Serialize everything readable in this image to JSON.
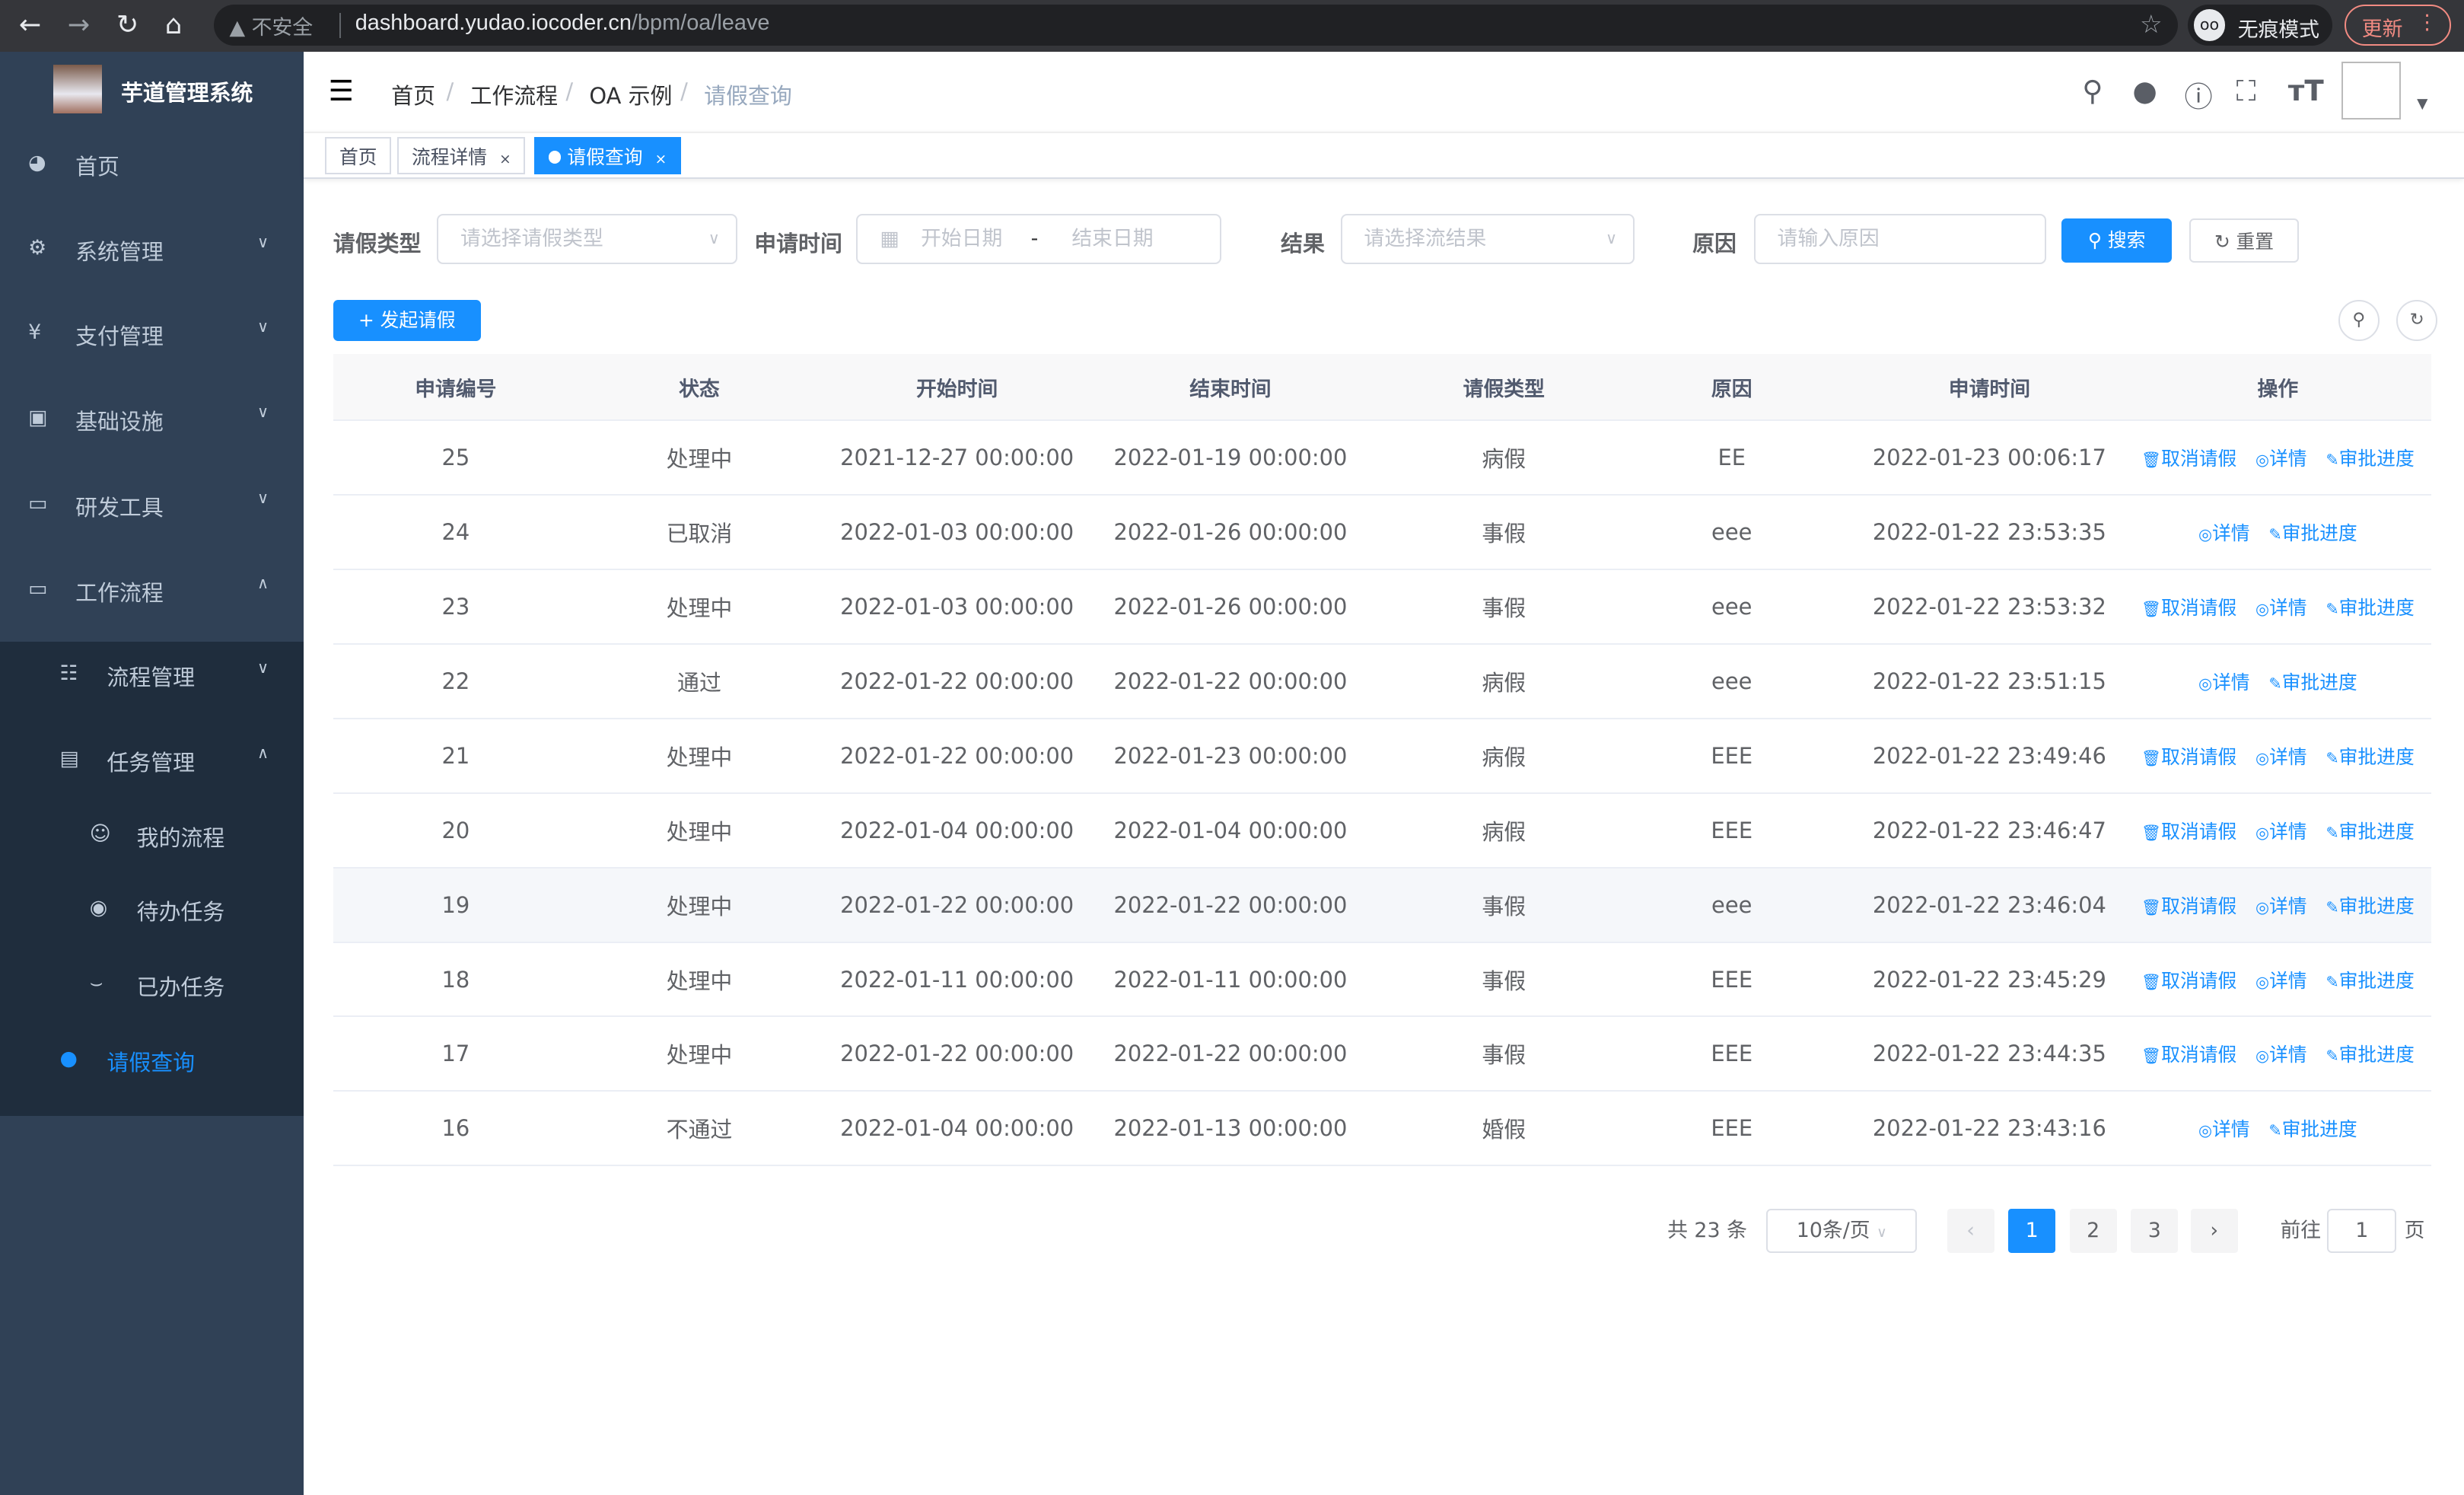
{
  "browser": {
    "security": "不安全",
    "url_host": "dashboard.yudao.iocoder.cn",
    "url_path": "/bpm/oa/leave",
    "incognito": "无痕模式",
    "update": "更新"
  },
  "sidebar": {
    "title": "芋道管理系统",
    "items": [
      {
        "label": "首页",
        "icon": "dashboard-icon"
      },
      {
        "label": "系统管理",
        "icon": "gear-icon"
      },
      {
        "label": "支付管理",
        "icon": "yen-icon"
      },
      {
        "label": "基础设施",
        "icon": "monitor-icon"
      },
      {
        "label": "研发工具",
        "icon": "toolbox-icon"
      },
      {
        "label": "工作流程",
        "icon": "toolbox-icon"
      },
      {
        "label": "流程管理",
        "icon": "tree-icon"
      },
      {
        "label": "任务管理",
        "icon": "task-icon"
      },
      {
        "label": "我的流程",
        "icon": "chat-icon"
      },
      {
        "label": "待办任务",
        "icon": "eye-icon"
      },
      {
        "label": "已办任务",
        "icon": "eye-closed-icon"
      },
      {
        "label": "请假查询",
        "icon": "user-icon"
      }
    ],
    "active_color": "#1890ff"
  },
  "breadcrumb": [
    "首页",
    "工作流程",
    "OA 示例",
    "请假查询"
  ],
  "tags": [
    {
      "label": "首页"
    },
    {
      "label": "流程详情",
      "close": "×"
    },
    {
      "label": "请假查询",
      "close": "×"
    }
  ],
  "filters": {
    "type_label": "请假类型",
    "type_placeholder": "请选择请假类型",
    "time_label": "申请时间",
    "start_placeholder": "开始日期",
    "range_sep": "-",
    "end_placeholder": "结束日期",
    "result_label": "结果",
    "result_placeholder": "请选择流结果",
    "reason_label": "原因",
    "reason_placeholder": "请输入原因",
    "search": "搜索",
    "reset": "重置"
  },
  "add_button": "+ 发起请假",
  "table": {
    "columns": [
      "申请编号",
      "状态",
      "开始时间",
      "结束时间",
      "请假类型",
      "原因",
      "申请时间",
      "操作"
    ],
    "rows": [
      {
        "id": "25",
        "status": "处理中",
        "start": "2021-12-27 00:00:00",
        "end": "2022-01-19 00:00:00",
        "type": "病假",
        "reason": "EE",
        "created": "2022-01-23 00:06:17",
        "cancel": true
      },
      {
        "id": "24",
        "status": "已取消",
        "start": "2022-01-03 00:00:00",
        "end": "2022-01-26 00:00:00",
        "type": "事假",
        "reason": "eee",
        "created": "2022-01-22 23:53:35",
        "cancel": false
      },
      {
        "id": "23",
        "status": "处理中",
        "start": "2022-01-03 00:00:00",
        "end": "2022-01-26 00:00:00",
        "type": "事假",
        "reason": "eee",
        "created": "2022-01-22 23:53:32",
        "cancel": true
      },
      {
        "id": "22",
        "status": "通过",
        "start": "2022-01-22 00:00:00",
        "end": "2022-01-22 00:00:00",
        "type": "病假",
        "reason": "eee",
        "created": "2022-01-22 23:51:15",
        "cancel": false
      },
      {
        "id": "21",
        "status": "处理中",
        "start": "2022-01-22 00:00:00",
        "end": "2022-01-23 00:00:00",
        "type": "病假",
        "reason": "EEE",
        "created": "2022-01-22 23:49:46",
        "cancel": true
      },
      {
        "id": "20",
        "status": "处理中",
        "start": "2022-01-04 00:00:00",
        "end": "2022-01-04 00:00:00",
        "type": "病假",
        "reason": "EEE",
        "created": "2022-01-22 23:46:47",
        "cancel": true
      },
      {
        "id": "19",
        "status": "处理中",
        "start": "2022-01-22 00:00:00",
        "end": "2022-01-22 00:00:00",
        "type": "事假",
        "reason": "eee",
        "created": "2022-01-22 23:46:04",
        "cancel": true
      },
      {
        "id": "18",
        "status": "处理中",
        "start": "2022-01-11 00:00:00",
        "end": "2022-01-11 00:00:00",
        "type": "事假",
        "reason": "EEE",
        "created": "2022-01-22 23:45:29",
        "cancel": true
      },
      {
        "id": "17",
        "status": "处理中",
        "start": "2022-01-22 00:00:00",
        "end": "2022-01-22 00:00:00",
        "type": "事假",
        "reason": "EEE",
        "created": "2022-01-22 23:44:35",
        "cancel": true
      },
      {
        "id": "16",
        "status": "不通过",
        "start": "2022-01-04 00:00:00",
        "end": "2022-01-13 00:00:00",
        "type": "婚假",
        "reason": "EEE",
        "created": "2022-01-22 23:43:16",
        "cancel": false
      }
    ],
    "actions": {
      "cancel": "取消请假",
      "detail": "详情",
      "progress": "审批进度"
    }
  },
  "pagination": {
    "total": "共 23 条",
    "page_size": "10条/页",
    "pages": [
      "1",
      "2",
      "3"
    ],
    "current": "1",
    "goto_label": "前往",
    "goto_value": "1",
    "page_unit": "页"
  }
}
